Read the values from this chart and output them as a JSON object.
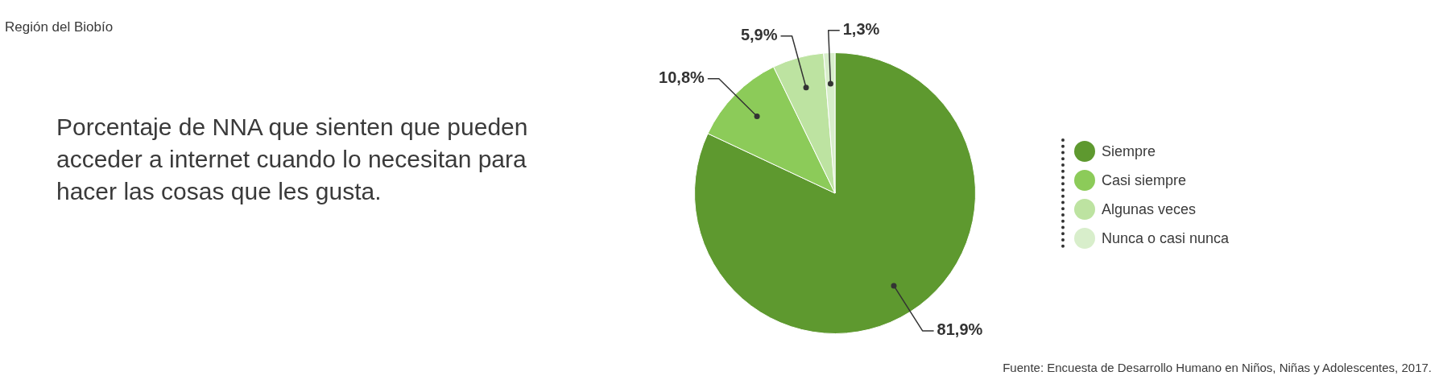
{
  "chart_data": {
    "type": "pie",
    "title": "Porcentaje de NNA que sienten que pueden acceder a internet cuando lo necesitan para hacer las cosas que les gusta.",
    "subtitle": "Región del Biobío",
    "categories": [
      "Siempre",
      "Casi siempre",
      "Algunas veces",
      "Nunca o casi nunca"
    ],
    "values": [
      81.9,
      10.8,
      5.9,
      1.3
    ],
    "value_labels": [
      "81,9%",
      "10,8%",
      "5,9%",
      "1,3%"
    ],
    "colors": [
      "#5e992f",
      "#8ccb59",
      "#bde3a1",
      "#d8eecb"
    ],
    "legend": "right",
    "annotations": [
      "Fuente: Encuesta de Desarrollo Humano en Niños, Niñas y Adolescentes, 2017."
    ]
  }
}
